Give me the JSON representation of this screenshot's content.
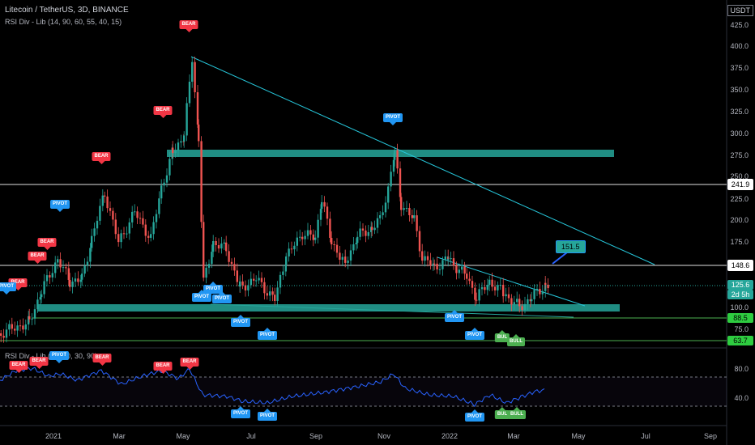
{
  "header": {
    "title": "Litecoin / TetherUS, 3D, BINANCE",
    "indicator": "RSI Div - Lib (14, 90, 60, 55, 40, 15)",
    "rsi_legend": "RSI Div - Lib (14, 90, 30, 90)"
  },
  "axis": {
    "currency": "USDT",
    "price_ticks": [
      "425.0",
      "400.0",
      "375.0",
      "350.0",
      "325.0",
      "300.0",
      "275.0",
      "250.0",
      "225.0",
      "200.0",
      "175.0",
      "100.0",
      "75.0"
    ],
    "rsi_ticks": [
      "80.0",
      "40.0"
    ],
    "time_ticks": [
      "2021",
      "Mar",
      "May",
      "Jul",
      "Sep",
      "Nov",
      "2022",
      "Mar",
      "May",
      "Jul",
      "Sep"
    ]
  },
  "price_tags": {
    "level_1": "241.9",
    "level_2": "148.6",
    "current": "125.6",
    "countdown": "2d 5h",
    "support_1": "88.5",
    "support_2": "63.7"
  },
  "callout": "151.5",
  "markers": {
    "bear": "BEAR",
    "pivot": "PIVOT",
    "bull": "BULL",
    "bull_short": "BUL"
  },
  "colors": {
    "bull_candle": "#26a69a",
    "bear_candle": "#ef5350",
    "trendline": "#26c6da",
    "zone": "#26a69a",
    "rsi_line": "#2962ff"
  }
}
